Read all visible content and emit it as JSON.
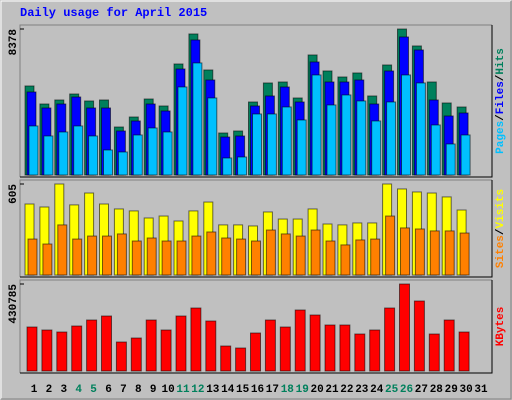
{
  "legend_separator": "/",
  "chart_data": [
    {
      "type": "bar",
      "title": "Daily usage for April 2015",
      "ylim": [
        0,
        8378
      ],
      "yticks": [
        8378
      ],
      "series": [
        {
          "name": "Hits",
          "color": "#00805c",
          "values": [
            5109,
            4075,
            4305,
            4649,
            4248,
            4305,
            2755,
            3329,
            4362,
            3961,
            6371,
            8093,
            6027,
            2411,
            2526,
            4190,
            5281,
            5338,
            4420,
            6888,
            5970,
            5625,
            5855,
            4535,
            6314,
            8378,
            7405,
            5338,
            4133,
            3903,
            null
          ]
        },
        {
          "name": "Files",
          "color": "#0000ff",
          "values": [
            4764,
            3846,
            4075,
            4477,
            3846,
            3846,
            2526,
            3100,
            4075,
            3674,
            6084,
            7749,
            5453,
            2181,
            2239,
            3961,
            4535,
            5051,
            4190,
            6486,
            5338,
            5338,
            5453,
            4075,
            5970,
            7921,
            7175,
            4305,
            3387,
            3559,
            null
          ]
        },
        {
          "name": "Pages",
          "color": "#00c0ff",
          "values": [
            2813,
            2239,
            2468,
            2813,
            2239,
            1435,
            1320,
            2296,
            2698,
            2468,
            5051,
            6429,
            4420,
            976,
            1033,
            3501,
            3501,
            3903,
            3157,
            5740,
            4018,
            4592,
            4248,
            3100,
            4190,
            5740,
            5281,
            2870,
            1779,
            2296,
            null
          ]
        }
      ]
    },
    {
      "type": "bar",
      "ylim": [
        0,
        605
      ],
      "yticks": [
        605
      ],
      "series": [
        {
          "name": "Visits",
          "color": "#ffff00",
          "values": [
            472,
            452,
            605,
            466,
            545,
            472,
            439,
            426,
            379,
            392,
            359,
            426,
            485,
            333,
            333,
            326,
            419,
            372,
            372,
            439,
            339,
            333,
            346,
            346,
            605,
            572,
            552,
            545,
            519,
            432,
            null
          ]
        },
        {
          "name": "Sites",
          "color": "#ff8000",
          "values": [
            239,
            206,
            333,
            239,
            259,
            259,
            273,
            226,
            246,
            226,
            226,
            259,
            286,
            246,
            239,
            226,
            299,
            273,
            259,
            299,
            226,
            200,
            233,
            239,
            392,
            313,
            306,
            293,
            293,
            279,
            null
          ]
        }
      ]
    },
    {
      "type": "bar",
      "ylim": [
        0,
        430785
      ],
      "yticks": [
        430785
      ],
      "categories": [
        "1",
        "2",
        "3",
        "4",
        "5",
        "6",
        "7",
        "8",
        "9",
        "10",
        "11",
        "12",
        "13",
        "14",
        "15",
        "16",
        "17",
        "18",
        "19",
        "20",
        "21",
        "22",
        "23",
        "24",
        "25",
        "26",
        "27",
        "28",
        "29",
        "30",
        "31"
      ],
      "category_colors": [
        "#000000",
        "#000000",
        "#000000",
        "#00805c",
        "#00805c",
        "#000000",
        "#000000",
        "#000000",
        "#000000",
        "#000000",
        "#00805c",
        "#00805c",
        "#000000",
        "#000000",
        "#000000",
        "#000000",
        "#000000",
        "#00805c",
        "#00805c",
        "#000000",
        "#000000",
        "#000000",
        "#000000",
        "#000000",
        "#00805c",
        "#00805c",
        "#000000",
        "#000000",
        "#000000",
        "#000000",
        "#000000"
      ],
      "series": [
        {
          "name": "KBytes",
          "color": "#ff0000",
          "values": [
            217844,
            202991,
            193089,
            222795,
            252501,
            272305,
            143579,
            163383,
            252501,
            202991,
            272305,
            311913,
            247550,
            123775,
            113873,
            188138,
            252501,
            217844,
            302011,
            277256,
            227746,
            227746,
            183187,
            202991,
            311913,
            430785,
            346570,
            183187,
            252501,
            193089,
            null
          ]
        }
      ]
    }
  ]
}
